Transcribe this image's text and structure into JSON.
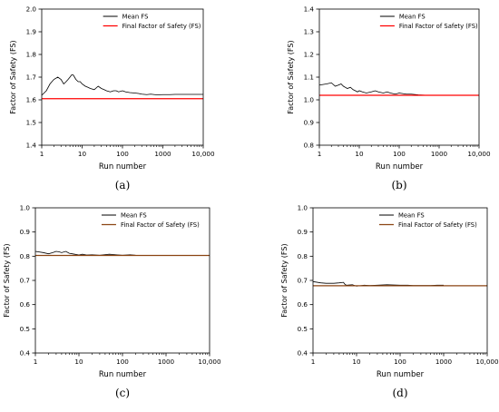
{
  "chart_data": [
    {
      "type": "line",
      "caption": "(a)",
      "xlabel": "Run number",
      "ylabel": "Factor of Safety (FS)",
      "xscale": "log",
      "xlim": [
        1,
        10000
      ],
      "ylim": [
        1.4,
        2.0
      ],
      "xticks": [
        "1",
        "10",
        "100",
        "1000",
        "10,000"
      ],
      "yticks": [
        "1.4",
        "1.5",
        "1.6",
        "1.7",
        "1.8",
        "1.9",
        "2.0"
      ],
      "legend": "top-right",
      "series": [
        {
          "name": "Mean FS",
          "color": "#000000",
          "x": [
            1,
            1.3,
            1.6,
            2,
            2.5,
            3,
            3.5,
            4,
            4.5,
            5,
            5.5,
            6,
            6.5,
            7,
            8,
            9,
            10,
            12,
            14,
            16,
            20,
            25,
            30,
            35,
            40,
            50,
            60,
            70,
            80,
            100,
            120,
            150,
            200,
            250,
            300,
            400,
            500,
            700,
            1000,
            1500,
            2000,
            3000,
            5000,
            7000,
            10000
          ],
          "y": [
            1.62,
            1.64,
            1.67,
            1.69,
            1.7,
            1.69,
            1.67,
            1.68,
            1.69,
            1.7,
            1.71,
            1.71,
            1.7,
            1.69,
            1.68,
            1.68,
            1.67,
            1.66,
            1.655,
            1.65,
            1.645,
            1.66,
            1.65,
            1.645,
            1.64,
            1.635,
            1.64,
            1.64,
            1.635,
            1.64,
            1.635,
            1.632,
            1.63,
            1.628,
            1.625,
            1.623,
            1.625,
            1.622,
            1.623,
            1.623,
            1.624,
            1.624,
            1.624,
            1.624,
            1.624
          ]
        },
        {
          "name": "Final Factor of Safety (FS)",
          "color": "#ff0000",
          "y_const": 1.605
        }
      ]
    },
    {
      "type": "line",
      "caption": "(b)",
      "xlabel": "Run number",
      "ylabel": "Factor of Safety (FS)",
      "xscale": "log",
      "xlim": [
        1,
        10000
      ],
      "ylim": [
        0.8,
        1.4
      ],
      "xticks": [
        "1",
        "10",
        "100",
        "1000",
        "10,000"
      ],
      "yticks": [
        "0.8",
        "0.9",
        "1.0",
        "1.1",
        "1.2",
        "1.3",
        "1.4"
      ],
      "legend": "top-right",
      "series": [
        {
          "name": "Mean FS",
          "color": "#000000",
          "x": [
            1,
            1.5,
            2,
            2.5,
            3,
            3.5,
            4,
            5,
            6,
            7,
            8,
            9,
            10,
            12,
            15,
            20,
            25,
            30,
            40,
            50,
            60,
            80,
            100,
            150,
            200,
            300,
            500
          ],
          "y": [
            1.065,
            1.07,
            1.075,
            1.06,
            1.065,
            1.07,
            1.06,
            1.05,
            1.055,
            1.045,
            1.04,
            1.035,
            1.04,
            1.035,
            1.03,
            1.035,
            1.04,
            1.035,
            1.03,
            1.035,
            1.03,
            1.025,
            1.03,
            1.025,
            1.025,
            1.022,
            1.02
          ]
        },
        {
          "name": "Final Factor of Safety (FS)",
          "color": "#ff0000",
          "y_const": 1.02
        }
      ]
    },
    {
      "type": "line",
      "caption": "(c)",
      "xlabel": "Run number",
      "ylabel": "Factor of Safety (FS)",
      "xscale": "log",
      "xlim": [
        1,
        10000
      ],
      "ylim": [
        0.4,
        1.0
      ],
      "xticks": [
        "1",
        "10",
        "100",
        "1000",
        "10,000"
      ],
      "yticks": [
        "0.4",
        "0.5",
        "0.6",
        "0.7",
        "0.8",
        "0.9",
        "1.0"
      ],
      "legend": "top-right",
      "series": [
        {
          "name": "Mean FS",
          "color": "#000000",
          "x": [
            1,
            1.5,
            2,
            2.5,
            3,
            3.5,
            4,
            5,
            6,
            7,
            8,
            10,
            12,
            15,
            20,
            30,
            50,
            70,
            100,
            150,
            200
          ],
          "y": [
            0.82,
            0.815,
            0.81,
            0.815,
            0.82,
            0.818,
            0.815,
            0.82,
            0.812,
            0.81,
            0.808,
            0.805,
            0.808,
            0.805,
            0.806,
            0.804,
            0.808,
            0.806,
            0.804,
            0.806,
            0.804
          ]
        },
        {
          "name": "Final Factor of Safety (FS)",
          "color": "#8b4513",
          "y_const": 0.803
        }
      ]
    },
    {
      "type": "line",
      "caption": "(d)",
      "xlabel": "Run number",
      "ylabel": "Factor of Safety (FS)",
      "xscale": "log",
      "xlim": [
        1,
        10000
      ],
      "ylim": [
        0.4,
        1.0
      ],
      "xticks": [
        "1",
        "10",
        "100",
        "1000",
        "10,000"
      ],
      "yticks": [
        "0.4",
        "0.5",
        "0.6",
        "0.7",
        "0.8",
        "0.9",
        "1.0"
      ],
      "legend": "top-right",
      "series": [
        {
          "name": "Mean FS",
          "color": "#000000",
          "x": [
            1,
            1.5,
            2,
            3,
            4,
            5,
            5.5,
            6,
            8,
            10,
            12,
            15,
            20,
            30,
            50,
            70,
            100,
            150,
            200,
            300,
            500,
            700,
            1000
          ],
          "y": [
            0.695,
            0.69,
            0.688,
            0.688,
            0.69,
            0.692,
            0.682,
            0.68,
            0.682,
            0.676,
            0.678,
            0.68,
            0.679,
            0.68,
            0.682,
            0.681,
            0.68,
            0.68,
            0.679,
            0.679,
            0.679,
            0.68,
            0.68
          ]
        },
        {
          "name": "Final Factor of Safety (FS)",
          "color": "#8b4513",
          "y_const": 0.678
        }
      ]
    }
  ]
}
